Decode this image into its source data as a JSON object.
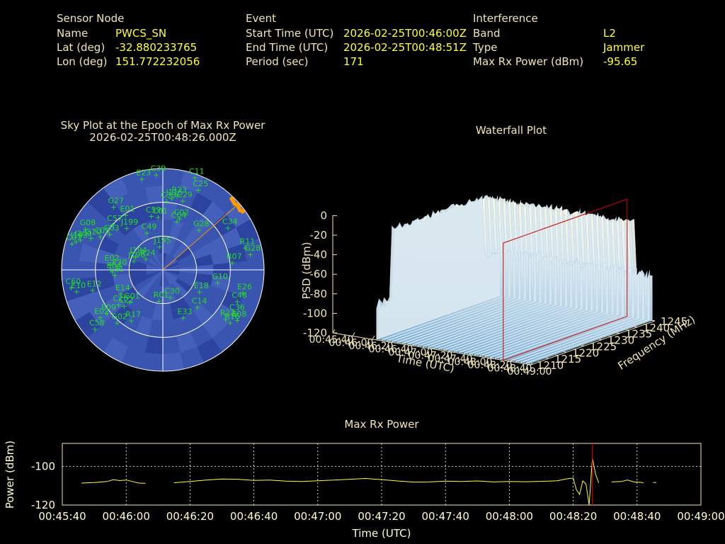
{
  "info": {
    "sensor": {
      "header": "Sensor Node",
      "rows": [
        {
          "label": "Name",
          "value": "PWCS_SN"
        },
        {
          "label": "Lat (deg)",
          "value": "-32.880233765"
        },
        {
          "label": "Lon (deg)",
          "value": "151.772232056"
        }
      ]
    },
    "event": {
      "header": "Event",
      "rows": [
        {
          "label": "Start Time (UTC)",
          "value": "2026-02-25T00:46:00Z"
        },
        {
          "label": "End Time (UTC)",
          "value": "2026-02-25T00:48:51Z"
        },
        {
          "label": "Period (sec)",
          "value": "171"
        }
      ]
    },
    "interference": {
      "header": "Interference",
      "rows": [
        {
          "label": "Band",
          "value": "L2"
        },
        {
          "label": "Type",
          "value": "Jammer"
        },
        {
          "label": "Max Rx Power (dBm)",
          "value": "-95.65"
        }
      ]
    }
  },
  "colors": {
    "label": "#f0e6b4",
    "value": "#ffff33",
    "sat": "#22dd22",
    "sky_bg": "#3a55b0",
    "sky_block": "#3148a0",
    "jammer": "#ff9900",
    "cursor": "#cc0000",
    "trace": "#ffff33"
  },
  "chart_data": [
    {
      "type": "scatter",
      "title": "Sky Plot at the Epoch of Max Rx Power",
      "subtitle": "2026-02-25T00:48:26.000Z",
      "projection": "polar",
      "axes": {
        "azimuth_deg": [
          0,
          360
        ],
        "elevation_deg": [
          0,
          90
        ],
        "rings_deg": [
          30,
          60
        ]
      },
      "satellites": [
        {
          "id": "C39",
          "az": 356,
          "el": 5
        },
        {
          "id": "E23",
          "az": 347,
          "el": 7
        },
        {
          "id": "C11",
          "az": 19,
          "el": 3
        },
        {
          "id": "C25",
          "az": 24,
          "el": 12
        },
        {
          "id": "R23",
          "az": 11,
          "el": 23
        },
        {
          "id": "C38",
          "az": 3,
          "el": 29
        },
        {
          "id": "J115",
          "az": 7,
          "el": 26
        },
        {
          "id": "C29",
          "az": 16,
          "el": 26
        },
        {
          "id": "G27",
          "az": 322,
          "el": 19
        },
        {
          "id": "E01",
          "az": 326,
          "el": 31
        },
        {
          "id": "C57",
          "az": 312,
          "el": 30
        },
        {
          "id": "J199",
          "az": 319,
          "el": 41
        },
        {
          "id": "C59",
          "az": 348,
          "el": 41
        },
        {
          "id": "C01",
          "az": 355,
          "el": 43
        },
        {
          "id": "C02",
          "az": 18,
          "el": 42
        },
        {
          "id": "C04",
          "az": 16,
          "el": 45
        },
        {
          "id": "G28",
          "az": 42,
          "el": 42
        },
        {
          "id": "C49",
          "az": 337,
          "el": 54
        },
        {
          "id": "C03",
          "az": 304,
          "el": 33
        },
        {
          "id": "C05",
          "az": 298,
          "el": 27
        },
        {
          "id": "G08",
          "az": 298,
          "el": 12
        },
        {
          "id": "J200",
          "az": 290,
          "el": 12
        },
        {
          "id": "J193",
          "az": 288,
          "el": 9
        },
        {
          "id": "G10",
          "az": 294,
          "el": 20
        },
        {
          "id": "C07",
          "az": 286,
          "el": 6
        },
        {
          "id": "J195",
          "az": 352,
          "el": 69
        },
        {
          "id": "J194",
          "az": 296,
          "el": 63
        },
        {
          "id": "J196",
          "az": 287,
          "el": 63
        },
        {
          "id": "R24",
          "az": 303,
          "el": 72
        },
        {
          "id": "C34",
          "az": 57,
          "el": 21
        },
        {
          "id": "R11",
          "az": 75,
          "el": 14
        },
        {
          "id": "G28",
          "az": 80,
          "el": 11
        },
        {
          "id": "R07",
          "az": 84,
          "el": 28
        },
        {
          "id": "G10",
          "az": 103,
          "el": 40
        },
        {
          "id": "E18",
          "az": 121,
          "el": 52
        },
        {
          "id": "E26",
          "az": 106,
          "el": 16
        },
        {
          "id": "C48",
          "az": 113,
          "el": 18
        },
        {
          "id": "C36",
          "az": 121,
          "el": 15
        },
        {
          "id": "R22",
          "az": 128,
          "el": 19
        },
        {
          "id": "R16",
          "az": 128,
          "el": 14
        },
        {
          "id": "E08",
          "az": 124,
          "el": 10
        },
        {
          "id": "C14",
          "az": 137,
          "el": 45
        },
        {
          "id": "E33",
          "az": 157,
          "el": 44
        },
        {
          "id": "C30",
          "az": 165,
          "el": 65
        },
        {
          "id": "R01",
          "az": 187,
          "el": 62
        },
        {
          "id": "R17",
          "az": 212,
          "el": 37
        },
        {
          "id": "G01",
          "az": 226,
          "el": 49
        },
        {
          "id": "C22",
          "az": 227,
          "el": 43
        },
        {
          "id": "C20",
          "az": 232,
          "el": 40
        },
        {
          "id": "E14",
          "az": 240,
          "el": 47
        },
        {
          "id": "E09",
          "az": 232,
          "el": 27
        },
        {
          "id": "E02",
          "az": 233,
          "el": 20
        },
        {
          "id": "G02",
          "az": 221,
          "el": 28
        },
        {
          "id": "C58",
          "az": 229,
          "el": 10
        },
        {
          "id": "E12",
          "az": 254,
          "el": 25
        },
        {
          "id": "E10",
          "az": 256,
          "el": 11
        },
        {
          "id": "C60",
          "az": 259,
          "el": 7
        },
        {
          "id": "E11",
          "az": 264,
          "el": 47
        },
        {
          "id": "E04",
          "az": 268,
          "el": 45
        },
        {
          "id": "E30",
          "az": 272,
          "el": 50
        },
        {
          "id": "E02",
          "az": 276,
          "el": 43
        }
      ],
      "jammer": {
        "az": 49,
        "el": 2
      }
    },
    {
      "type": "area",
      "title": "Waterfall Plot",
      "xlabel": "Time (UTC)",
      "ylabel": "Frequency (MHz)",
      "zlabel": "PSD (dBm)",
      "x_ticks": [
        "00:45:40",
        "00:46:00",
        "00:46:20",
        "00:46:40",
        "00:47:00",
        "00:47:20",
        "00:47:40",
        "00:48:00",
        "00:48:20",
        "00:48:40",
        "00:49:00"
      ],
      "y_ticks": [
        "1210",
        "1215",
        "1220",
        "1225",
        "1230",
        "1235",
        "1240",
        "1245"
      ],
      "z_ticks": [
        "0",
        "-20",
        "-40",
        "-60",
        "-80",
        "-100",
        "-120"
      ],
      "zlim": [
        -120,
        0
      ],
      "plateau_psd_dbm": -10,
      "floor_psd_dbm": -90,
      "cursor_time": "00:48:26"
    },
    {
      "type": "line",
      "title": "Max Rx Power",
      "xlabel": "Time (UTC)",
      "ylabel": "Power (dBm)",
      "x_ticks": [
        "00:45:40",
        "00:46:00",
        "00:46:20",
        "00:46:40",
        "00:47:00",
        "00:47:20",
        "00:47:40",
        "00:48:00",
        "00:48:20",
        "00:48:40",
        "00:49:00"
      ],
      "y_ticks": [
        "-100",
        "-120"
      ],
      "xlim_sec": [
        0,
        200
      ],
      "ylim": [
        -120,
        -88
      ],
      "cursor_sec": 166,
      "segments": [
        [
          [
            6,
            -108.6
          ],
          [
            10,
            -108.3
          ],
          [
            14,
            -107.8
          ],
          [
            16,
            -106.8
          ],
          [
            18,
            -107.3
          ],
          [
            20,
            -107.0
          ],
          [
            22,
            -107.8
          ],
          [
            24,
            -108.6
          ],
          [
            26,
            -108.7
          ]
        ],
        [
          [
            35,
            -108.4
          ],
          [
            40,
            -107.8
          ],
          [
            45,
            -107.0
          ],
          [
            50,
            -106.5
          ],
          [
            55,
            -106.6
          ],
          [
            60,
            -107.2
          ],
          [
            65,
            -107.0
          ],
          [
            70,
            -107.6
          ],
          [
            75,
            -107.8
          ],
          [
            80,
            -107.4
          ],
          [
            85,
            -107.0
          ],
          [
            90,
            -106.6
          ],
          [
            95,
            -106.2
          ],
          [
            100,
            -106.8
          ],
          [
            105,
            -107.5
          ],
          [
            110,
            -108.1
          ],
          [
            115,
            -108.0
          ],
          [
            120,
            -107.6
          ],
          [
            125,
            -107.8
          ],
          [
            130,
            -107.5
          ],
          [
            135,
            -108.0
          ],
          [
            140,
            -107.8
          ],
          [
            145,
            -107.9
          ],
          [
            150,
            -107.7
          ],
          [
            155,
            -107.4
          ],
          [
            158,
            -106.4
          ],
          [
            160,
            -106.0
          ],
          [
            161,
            -112.0
          ],
          [
            162,
            -114.5
          ],
          [
            163,
            -107.5
          ],
          [
            164,
            -109.0
          ],
          [
            165,
            -120.0
          ],
          [
            166,
            -95.6
          ],
          [
            167,
            -104.0
          ],
          [
            168,
            -108.5
          ]
        ],
        [
          [
            172,
            -108.0
          ],
          [
            175,
            -107.8
          ],
          [
            177,
            -107.0
          ],
          [
            179,
            -108.0
          ],
          [
            181,
            -108.2
          ],
          [
            182,
            -108.4
          ]
        ],
        [
          [
            185,
            -108.3
          ],
          [
            186,
            -108.3
          ]
        ]
      ]
    }
  ]
}
